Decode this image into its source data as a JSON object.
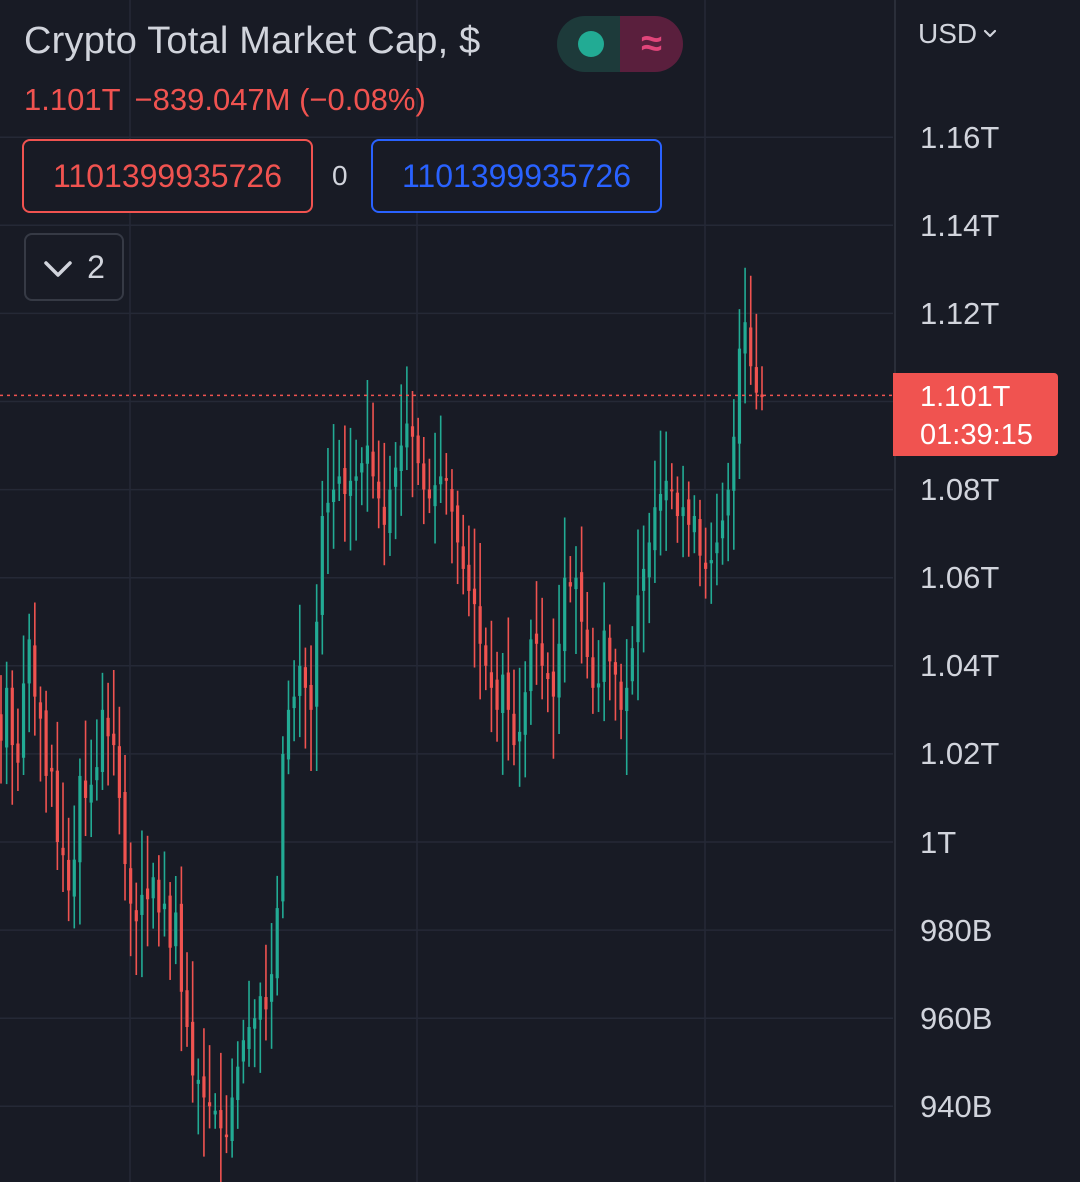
{
  "header": {
    "title": "Crypto Total Market Cap, $",
    "price": "1.101T",
    "change": "−839.047M (−0.08%)",
    "ohlc_left": "1101399935726",
    "ohlc_mid": "0",
    "ohlc_right": "1101399935726",
    "indicators_count": "2",
    "toggle_right_glyph": "≈"
  },
  "axis": {
    "currency": "USD",
    "ticks": [
      "1.16T",
      "1.14T",
      "1.12T",
      "1.08T",
      "1.06T",
      "1.04T",
      "1.02T",
      "1T",
      "980B",
      "960B",
      "940B"
    ]
  },
  "last_price": {
    "value": "1.101T",
    "countdown": "01:39:15"
  },
  "colors": {
    "up": "#22ab94",
    "down": "#f05350",
    "background": "#181b25",
    "grid": "#252936",
    "text": "#d1d4dc",
    "accent_blue": "#2962ff"
  },
  "icons": [
    "chevron-down-icon",
    "dot-icon",
    "approx-icon"
  ],
  "chart_data": {
    "type": "candlestick",
    "title": "Crypto Total Market Cap, $",
    "xlabel": "",
    "ylabel": "",
    "y_unit": "USD (trillions)",
    "ylim": [
      0.93,
      1.17
    ],
    "yticks": [
      1.16,
      1.14,
      1.12,
      1.1,
      1.08,
      1.06,
      1.04,
      1.02,
      1.0,
      0.98,
      0.96,
      0.94
    ],
    "last_value": 1.1014,
    "grid": true,
    "candle_count": 136,
    "low_point": 0.931,
    "high_point": 1.121,
    "closes": [
      1.023,
      1.035,
      1.022,
      1.018,
      1.036,
      1.046,
      1.033,
      1.028,
      1.015,
      1.016,
      1.0,
      0.997,
      0.989,
      0.996,
      1.015,
      1.01,
      1.013,
      1.017,
      1.03,
      1.024,
      1.022,
      1.01,
      0.995,
      0.986,
      0.982,
      0.988,
      0.987,
      0.992,
      0.984,
      0.986,
      0.976,
      0.984,
      0.966,
      0.958,
      0.947,
      0.946,
      0.942,
      0.94,
      0.939,
      0.935,
      0.933,
      0.942,
      0.949,
      0.955,
      0.958,
      0.96,
      0.965,
      0.962,
      0.97,
      0.985,
      1.02,
      1.03,
      1.033,
      1.04,
      1.035,
      1.03,
      1.05,
      1.074,
      1.077,
      1.08,
      1.083,
      1.079,
      1.082,
      1.083,
      1.086,
      1.09,
      1.083,
      1.078,
      1.072,
      1.08,
      1.085,
      1.09,
      1.095,
      1.092,
      1.086,
      1.08,
      1.078,
      1.081,
      1.083,
      1.082,
      1.075,
      1.068,
      1.062,
      1.057,
      1.054,
      1.045,
      1.04,
      1.035,
      1.03,
      1.038,
      1.03,
      1.022,
      1.025,
      1.034,
      1.046,
      1.045,
      1.04,
      1.037,
      1.033,
      1.045,
      1.06,
      1.058,
      1.06,
      1.05,
      1.042,
      1.035,
      1.036,
      1.048,
      1.041,
      1.038,
      1.03,
      1.035,
      1.044,
      1.056,
      1.062,
      1.068,
      1.076,
      1.079,
      1.082,
      1.08,
      1.074,
      1.076,
      1.072,
      1.074,
      1.065,
      1.062,
      1.064,
      1.068,
      1.073,
      1.08,
      1.092,
      1.112,
      1.118,
      1.108,
      1.102,
      1.101
    ]
  }
}
